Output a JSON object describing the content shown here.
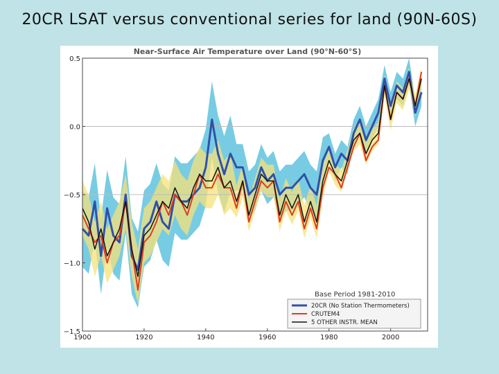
{
  "slide": {
    "title": "20CR LSAT versus conventional series for land (90N-60S)"
  },
  "colors": {
    "background": "#bfe3e6",
    "series_20cr": "#3050a8",
    "series_crutem4": "#e03a1e",
    "series_mean": "#111111",
    "band_20cr": "#5fc3de",
    "band_other": "#f5e27a",
    "band_overlap": "#9ccf6a"
  },
  "chart_data": {
    "type": "line",
    "title": "Near-Surface Air Temperature over Land (90°N-60°S)",
    "xlabel": "",
    "ylabel": "",
    "xlim": [
      1900,
      2012
    ],
    "ylim": [
      -1.5,
      0.5
    ],
    "xticks": [
      1900,
      1920,
      1940,
      1960,
      1980,
      2000
    ],
    "yticks": [
      0.5,
      0.0,
      -0.5,
      -1.0,
      -1.5
    ],
    "ytick_labels": [
      "0.5",
      "0.0",
      "−0.5",
      "−1.0",
      "−1.5"
    ],
    "grid": "horizontal lines at 0.5, 0.0, -0.5",
    "legend": {
      "placement": "bottom-right",
      "title": "Base Period 1981-2010",
      "entries": [
        "20CR (No Station Thermometers)",
        "CRUTEM4",
        "5 OTHER INSTR. MEAN"
      ]
    },
    "years": [
      1900,
      1902,
      1904,
      1906,
      1908,
      1910,
      1912,
      1914,
      1916,
      1918,
      1920,
      1922,
      1924,
      1926,
      1928,
      1930,
      1932,
      1934,
      1936,
      1938,
      1940,
      1942,
      1944,
      1946,
      1948,
      1950,
      1952,
      1954,
      1956,
      1958,
      1960,
      1962,
      1964,
      1966,
      1968,
      1970,
      1972,
      1974,
      1976,
      1978,
      1980,
      1982,
      1984,
      1986,
      1988,
      1990,
      1992,
      1994,
      1996,
      1998,
      2000,
      2002,
      2004,
      2006,
      2008,
      2010
    ],
    "series": [
      {
        "name": "20CR (No Station Thermometers)",
        "color": "#3050a8",
        "values": [
          -0.75,
          -0.8,
          -0.55,
          -0.95,
          -0.6,
          -0.8,
          -0.85,
          -0.5,
          -0.95,
          -1.05,
          -0.75,
          -0.7,
          -0.55,
          -0.7,
          -0.75,
          -0.5,
          -0.55,
          -0.55,
          -0.5,
          -0.45,
          -0.3,
          0.05,
          -0.2,
          -0.35,
          -0.2,
          -0.3,
          -0.3,
          -0.5,
          -0.45,
          -0.3,
          -0.4,
          -0.35,
          -0.5,
          -0.45,
          -0.45,
          -0.4,
          -0.35,
          -0.45,
          -0.5,
          -0.25,
          -0.15,
          -0.3,
          -0.2,
          -0.25,
          -0.05,
          0.05,
          -0.1,
          0.0,
          0.1,
          0.35,
          0.15,
          0.3,
          0.25,
          0.4,
          0.1,
          0.25
        ]
      },
      {
        "name": "CRUTEM4",
        "color": "#e03a1e",
        "values": [
          -0.65,
          -0.75,
          -0.85,
          -0.8,
          -1.0,
          -0.85,
          -0.8,
          -0.55,
          -0.9,
          -1.2,
          -0.85,
          -0.8,
          -0.7,
          -0.55,
          -0.65,
          -0.5,
          -0.55,
          -0.65,
          -0.5,
          -0.35,
          -0.45,
          -0.45,
          -0.35,
          -0.45,
          -0.45,
          -0.6,
          -0.4,
          -0.7,
          -0.55,
          -0.4,
          -0.45,
          -0.4,
          -0.7,
          -0.55,
          -0.65,
          -0.55,
          -0.75,
          -0.6,
          -0.75,
          -0.45,
          -0.3,
          -0.35,
          -0.45,
          -0.3,
          -0.15,
          -0.05,
          -0.25,
          -0.15,
          -0.1,
          0.3,
          0.05,
          0.25,
          0.2,
          0.35,
          0.15,
          0.4
        ]
      },
      {
        "name": "5 OTHER INSTR. MEAN",
        "color": "#111111",
        "values": [
          -0.6,
          -0.7,
          -0.9,
          -0.75,
          -0.95,
          -0.85,
          -0.75,
          -0.55,
          -0.9,
          -1.1,
          -0.8,
          -0.75,
          -0.65,
          -0.55,
          -0.6,
          -0.45,
          -0.55,
          -0.6,
          -0.45,
          -0.35,
          -0.4,
          -0.4,
          -0.3,
          -0.45,
          -0.4,
          -0.55,
          -0.4,
          -0.65,
          -0.5,
          -0.35,
          -0.4,
          -0.4,
          -0.65,
          -0.5,
          -0.6,
          -0.5,
          -0.7,
          -0.55,
          -0.7,
          -0.4,
          -0.25,
          -0.35,
          -0.4,
          -0.25,
          -0.1,
          -0.05,
          -0.2,
          -0.1,
          -0.05,
          0.3,
          0.05,
          0.25,
          0.2,
          0.35,
          0.15,
          0.35
        ]
      }
    ]
  }
}
